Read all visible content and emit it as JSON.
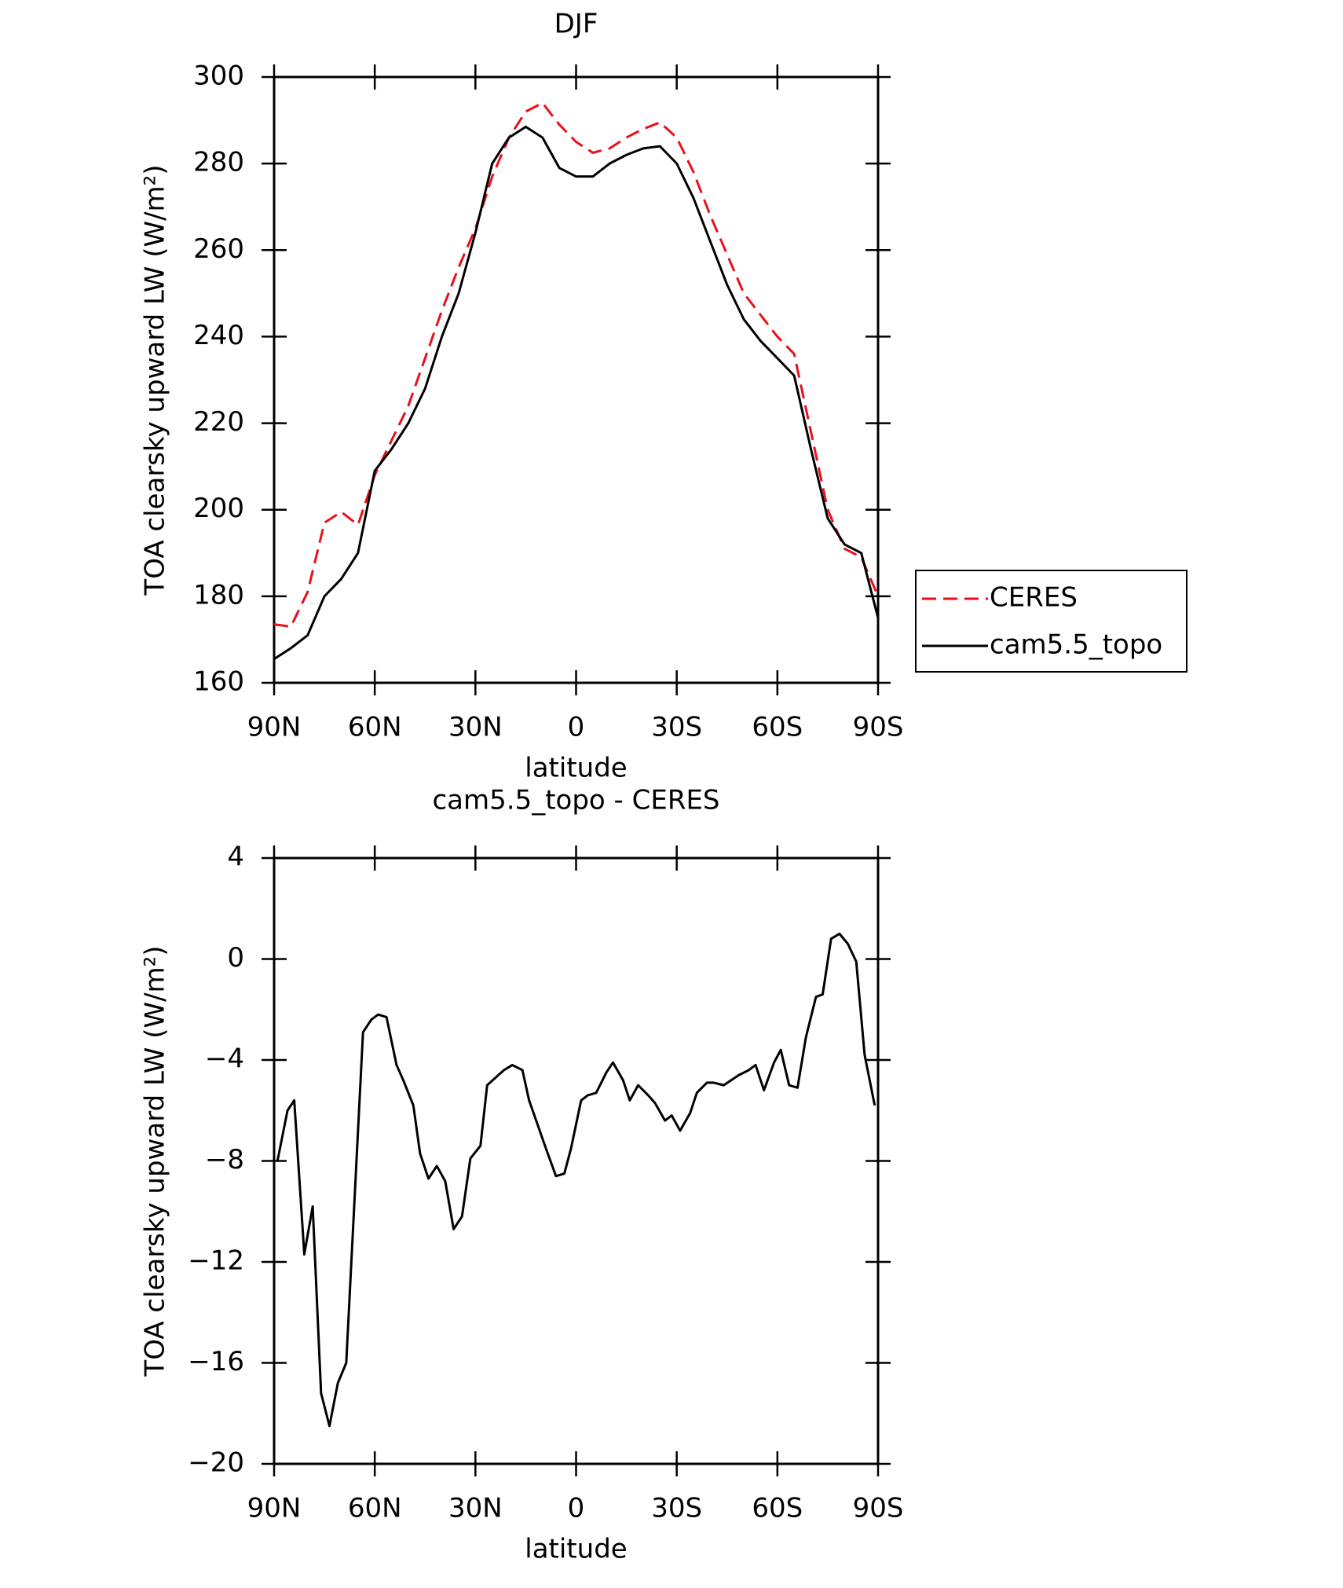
{
  "chart_data": [
    {
      "type": "line",
      "title": "DJF",
      "xlabel": "latitude",
      "ylabel": "TOA clearsky upward LW (W/m²)",
      "x": [
        90,
        85,
        80,
        75,
        70,
        65,
        60,
        55,
        50,
        45,
        40,
        35,
        30,
        25,
        20,
        15,
        10,
        5,
        0,
        -5,
        -10,
        -15,
        -20,
        -25,
        -30,
        -35,
        -40,
        -45,
        -50,
        -55,
        -60,
        -65,
        -70,
        -75,
        -80,
        -85,
        -90
      ],
      "series": [
        {
          "name": "CERES",
          "color": "#e8111b",
          "linestyle": "dashed",
          "values": [
            173.5,
            173,
            181,
            197,
            199.5,
            196.5,
            208,
            216,
            224,
            235,
            246,
            256,
            265,
            277,
            286,
            292,
            294,
            289,
            285,
            282.5,
            283.5,
            286,
            288,
            289.5,
            286,
            278,
            268,
            259,
            250,
            245,
            240,
            236,
            218,
            200,
            191,
            189,
            180
          ]
        },
        {
          "name": "cam5.5_topo",
          "color": "#000000",
          "linestyle": "solid",
          "values": [
            165.5,
            168,
            171,
            180,
            184,
            190,
            209,
            214,
            220,
            228,
            240,
            250,
            264,
            280,
            286,
            288.5,
            286,
            279,
            277,
            277,
            280,
            282,
            283.5,
            284,
            280,
            272,
            262,
            252,
            244,
            239,
            235,
            231,
            214,
            198,
            192,
            190,
            175
          ]
        }
      ],
      "xlim": [
        90,
        -90
      ],
      "ylim": [
        160,
        300
      ],
      "xticks": [
        {
          "value": 90,
          "label": "90N"
        },
        {
          "value": 60,
          "label": "60N"
        },
        {
          "value": 30,
          "label": "30N"
        },
        0,
        {
          "value": -30,
          "label": "30S"
        },
        {
          "value": -60,
          "label": "60S"
        },
        {
          "value": -90,
          "label": "90S"
        }
      ],
      "yticks": [
        160,
        180,
        200,
        220,
        240,
        260,
        280,
        300
      ],
      "legend": "right"
    },
    {
      "type": "line",
      "title": "cam5.5_topo - CERES",
      "xlabel": "latitude",
      "ylabel": "TOA clearsky upward LW (W/m²)",
      "x": [
        89,
        86,
        84,
        81,
        78.5,
        76,
        73.5,
        71,
        68.5,
        63.5,
        61,
        59,
        56.5,
        53.5,
        51.5,
        48.5,
        46.5,
        44,
        41.5,
        39,
        36.5,
        34,
        31.5,
        28.5,
        26.5,
        24,
        21.5,
        19,
        16,
        14,
        9,
        6,
        3.5,
        1.5,
        -1.5,
        -3.5,
        -6,
        -9,
        -11,
        -14,
        -16,
        -18.5,
        -21.5,
        -23.5,
        -26.5,
        -28.5,
        -31,
        -34,
        -36,
        -39,
        -41,
        -44,
        -48.5,
        -51.5,
        -53.5,
        -56,
        -59,
        -61,
        -63.5,
        -66,
        -68.5,
        -71.5,
        -73.5,
        -76,
        -78.5,
        -81,
        -83.5,
        -86,
        -89
      ],
      "series": [
        {
          "name": "cam5.5_topo - CERES",
          "color": "#000000",
          "linestyle": "solid",
          "values": [
            -8.0,
            -6.0,
            -5.6,
            -11.7,
            -9.8,
            -17.2,
            -18.5,
            -16.8,
            -16.0,
            -2.9,
            -2.4,
            -2.2,
            -2.3,
            -4.2,
            -4.8,
            -5.8,
            -7.7,
            -8.7,
            -8.2,
            -8.8,
            -10.7,
            -10.2,
            -7.9,
            -7.4,
            -5.0,
            -4.7,
            -4.4,
            -4.2,
            -4.4,
            -5.6,
            -7.5,
            -8.6,
            -8.5,
            -7.5,
            -5.6,
            -5.4,
            -5.3,
            -4.5,
            -4.1,
            -4.8,
            -5.6,
            -5.0,
            -5.4,
            -5.7,
            -6.4,
            -6.2,
            -6.8,
            -6.1,
            -5.3,
            -4.9,
            -4.9,
            -5.0,
            -4.6,
            -4.4,
            -4.2,
            -5.2,
            -4.1,
            -3.6,
            -5.0,
            -5.1,
            -3.1,
            -1.5,
            -1.4,
            0.8,
            1.0,
            0.6,
            -0.1,
            -3.8,
            -5.8
          ]
        }
      ],
      "xlim": [
        90,
        -90
      ],
      "ylim": [
        -20,
        4
      ],
      "xticks": [
        {
          "value": 90,
          "label": "90N"
        },
        {
          "value": 60,
          "label": "60N"
        },
        {
          "value": 30,
          "label": "30N"
        },
        0,
        {
          "value": -30,
          "label": "30S"
        },
        {
          "value": -60,
          "label": "60S"
        },
        {
          "value": -90,
          "label": "90S"
        }
      ],
      "yticks": [
        {
          "value": -20,
          "label": "−20"
        },
        {
          "value": -16,
          "label": "−16"
        },
        {
          "value": -12,
          "label": "−12"
        },
        {
          "value": -8,
          "label": "−8"
        },
        {
          "value": -4,
          "label": "−4"
        },
        0,
        4
      ]
    }
  ]
}
